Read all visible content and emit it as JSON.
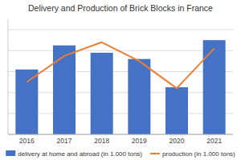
{
  "chart_data": {
    "type": "bar",
    "title": "Delivery and Production of Brick Blocks in France",
    "categories": [
      "2016",
      "2017",
      "2018",
      "2019",
      "2020",
      "2021"
    ],
    "series": [
      {
        "name": "delivery at home and abroad (in 1.000 tons)",
        "type": "bar",
        "color": "#4472C4",
        "values": [
          62,
          85,
          78,
          72,
          45,
          90
        ]
      },
      {
        "name": "production (in 1.000 tons)",
        "type": "line",
        "color": "#ED7D31",
        "values": [
          50,
          75,
          88,
          70,
          44,
          82
        ]
      }
    ],
    "ylim": [
      0,
      110
    ],
    "yticks": [
      0,
      20,
      40,
      60,
      80,
      100
    ],
    "grid": true,
    "legend": "bottom",
    "tick_labels": "x"
  }
}
